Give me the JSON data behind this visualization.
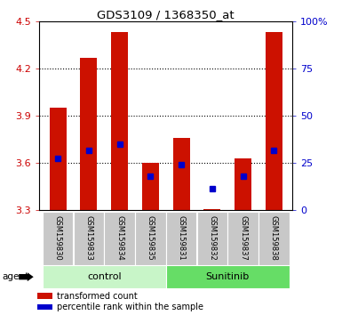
{
  "title": "GDS3109 / 1368350_at",
  "samples": [
    "GSM159830",
    "GSM159833",
    "GSM159834",
    "GSM159835",
    "GSM159831",
    "GSM159832",
    "GSM159837",
    "GSM159838"
  ],
  "red_values": [
    3.95,
    4.27,
    4.43,
    3.6,
    3.76,
    3.31,
    3.63,
    4.43
  ],
  "blue_values": [
    3.63,
    3.68,
    3.72,
    3.52,
    3.59,
    3.44,
    3.52,
    3.68
  ],
  "ymin": 3.3,
  "ymax": 4.5,
  "yticks_left": [
    3.3,
    3.6,
    3.9,
    4.2,
    4.5
  ],
  "yticks_right_vals": [
    3.3,
    3.6,
    3.9,
    4.2,
    4.5
  ],
  "yticks_right_labels": [
    "0",
    "25",
    "50",
    "75",
    "100%"
  ],
  "grid_vals": [
    3.6,
    3.9,
    4.2
  ],
  "groups": [
    {
      "label": "control",
      "indices": [
        0,
        1,
        2,
        3
      ],
      "color": "#c8f5c8"
    },
    {
      "label": "Sunitinib",
      "indices": [
        4,
        5,
        6,
        7
      ],
      "color": "#66dd66"
    }
  ],
  "bar_color": "#cc1100",
  "blue_color": "#0000cc",
  "baseline": 3.3,
  "bar_width": 0.55,
  "blue_marker_size": 5,
  "left_label_color": "#cc0000",
  "right_label_color": "#0000cc",
  "bg_color": "#ffffff",
  "plot_bg_color": "#ffffff",
  "tick_bg_color": "#c8c8c8"
}
